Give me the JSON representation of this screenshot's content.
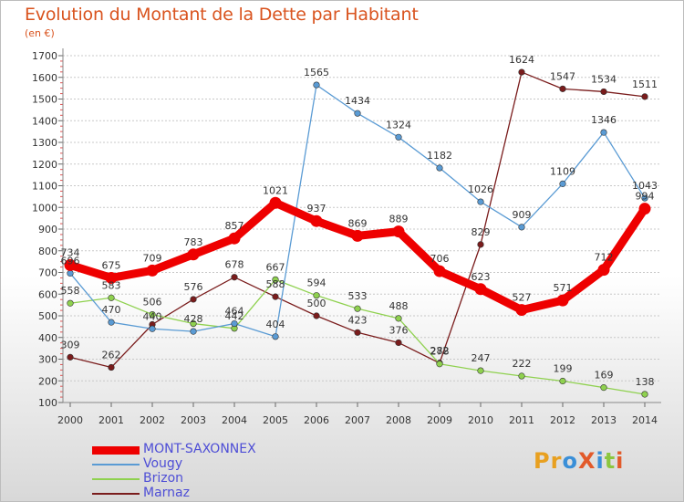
{
  "header": {
    "title": "Evolution du Montant de la Dette par Habitant",
    "subtitle": "(en €)"
  },
  "logo": {
    "text": "ProXiti",
    "colors": [
      "#e8a020",
      "#e8a020",
      "#3a8fd8",
      "#e25a2a",
      "#3a8fd8",
      "#8cc63f",
      "#e25a2a"
    ]
  },
  "chart_data": {
    "type": "line",
    "x": [
      "2000",
      "2001",
      "2002",
      "2003",
      "2004",
      "2005",
      "2006",
      "2007",
      "2008",
      "2009",
      "2010",
      "2011",
      "2012",
      "2013",
      "2014"
    ],
    "ylim": [
      100,
      1700
    ],
    "yticks": [
      100,
      200,
      300,
      400,
      500,
      600,
      700,
      800,
      900,
      1000,
      1100,
      1200,
      1300,
      1400,
      1500,
      1600,
      1700
    ],
    "grid": "horizontal",
    "legend_position": "bottom-left",
    "series": [
      {
        "name": "Marnaz",
        "color": "#7a1c1c",
        "values": [
          309,
          262,
          460,
          576,
          678,
          588,
          500,
          423,
          376,
          282,
          829,
          1624,
          1547,
          1534,
          1511
        ],
        "labels": [
          "309",
          "262",
          "",
          "576",
          "678",
          "588",
          "500",
          "423",
          "376",
          "282",
          "829",
          "1624",
          "1547",
          "1534",
          "1511"
        ]
      },
      {
        "name": "Brizon",
        "color": "#8fd14f",
        "values": [
          558,
          583,
          506,
          464,
          442,
          667,
          594,
          533,
          488,
          278,
          247,
          222,
          199,
          169,
          138
        ],
        "labels": [
          "558",
          "583",
          "506",
          "",
          "442",
          "667",
          "594",
          "533",
          "488",
          "278",
          "247",
          "222",
          "199",
          "169",
          "138"
        ]
      },
      {
        "name": "Vougy",
        "color": "#5a9bd4",
        "values": [
          696,
          470,
          440,
          428,
          464,
          404,
          1565,
          1434,
          1324,
          1182,
          1026,
          909,
          1109,
          1346,
          1043
        ],
        "labels": [
          "696",
          "470",
          "440",
          "428",
          "464",
          "404",
          "1565",
          "1434",
          "1324",
          "1182",
          "1026",
          "909",
          "1109",
          "1346",
          "1043"
        ]
      },
      {
        "name": "MONT-SAXONNEX",
        "color": "#ee0000",
        "values": [
          734,
          675,
          709,
          783,
          857,
          1021,
          937,
          869,
          889,
          706,
          623,
          527,
          571,
          712,
          994
        ],
        "labels": [
          "734",
          "675",
          "709",
          "783",
          "857",
          "1021",
          "937",
          "869",
          "889",
          "706",
          "623",
          "527",
          "571",
          "712",
          "994"
        ]
      }
    ]
  },
  "legend": [
    {
      "name": "MONT-SAXONNEX",
      "color": "#ee0000"
    },
    {
      "name": "Vougy",
      "color": "#5a9bd4"
    },
    {
      "name": "Brizon",
      "color": "#8fd14f"
    },
    {
      "name": "Marnaz",
      "color": "#7a1c1c"
    }
  ]
}
